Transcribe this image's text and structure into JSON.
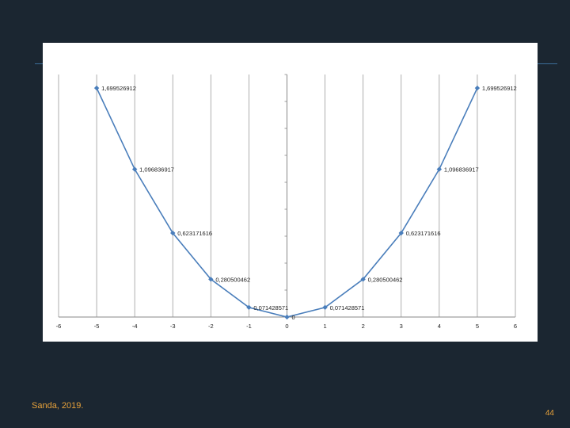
{
  "footer": {
    "source": "Sanda, 2019.",
    "page_number": "44"
  },
  "colors": {
    "background": "#1b2631",
    "accent": "#3b6d98",
    "series": "#4a7ebb",
    "footer_text": "#e8a23a"
  },
  "chart_data": {
    "type": "line",
    "title": "",
    "xlabel": "",
    "ylabel": "",
    "xlim": [
      -6,
      6
    ],
    "ylim": [
      0,
      1.8
    ],
    "x_ticks": [
      "-6",
      "-5",
      "-4",
      "-3",
      "-2",
      "-1",
      "0",
      "1",
      "2",
      "3",
      "4",
      "5",
      "6"
    ],
    "grid": "vertical",
    "legend": "none",
    "series": [
      {
        "x": [
          -5,
          -4,
          -3,
          -2,
          -1,
          0,
          1,
          2,
          3,
          4,
          5
        ],
        "y": [
          1.699526912,
          1.096836917,
          0.623171616,
          0.280500462,
          0.071428571,
          0,
          0.071428571,
          0.280500462,
          0.623171616,
          1.096836917,
          1.699526912
        ],
        "labels": [
          "1,699526912",
          "1,096836917",
          "0,623171616",
          "0,280500462",
          "0,071428571",
          "0",
          "0,071428571",
          "0,280500462",
          "0,623171616",
          "1,096836917",
          "1,699526912"
        ]
      }
    ]
  }
}
